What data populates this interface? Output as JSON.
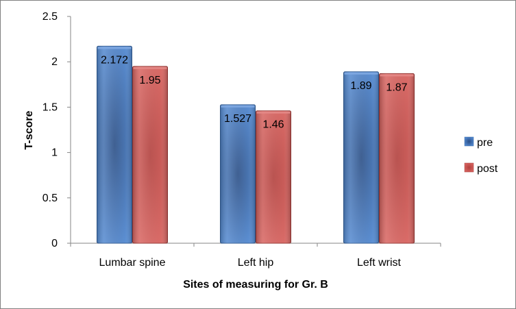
{
  "chart_data": {
    "type": "bar",
    "title": "",
    "xlabel": "Sites of measuring for Gr. B",
    "ylabel": "T-score",
    "categories": [
      "Lumbar spine",
      "Left hip",
      "Left wrist"
    ],
    "series": [
      {
        "name": "pre",
        "values": [
          2.172,
          1.527,
          1.89
        ],
        "labels": [
          "2.172",
          "1.527",
          "1.89"
        ],
        "color": "#4a7ebb"
      },
      {
        "name": "post",
        "values": [
          1.95,
          1.46,
          1.87
        ],
        "labels": [
          "1.95",
          "1.46",
          "1.87"
        ],
        "color": "#c0504d"
      }
    ],
    "ylim": [
      0,
      2.5
    ],
    "yticks": [
      "0",
      "0.5",
      "1",
      "1.5",
      "2",
      "2.5"
    ],
    "grid": false,
    "legend": "right"
  }
}
